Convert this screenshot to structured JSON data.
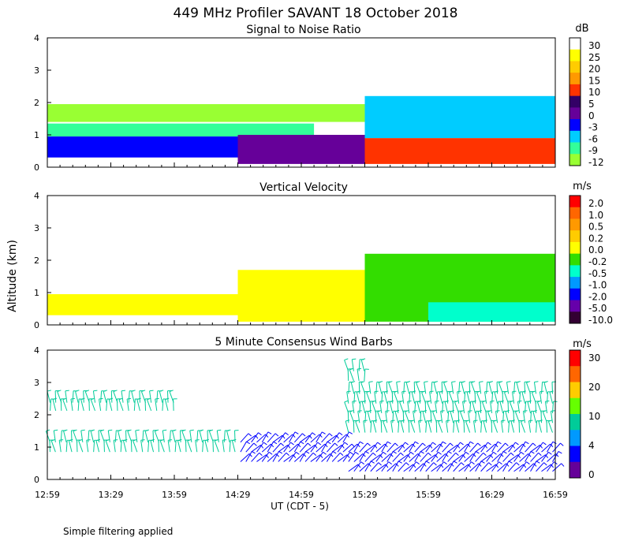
{
  "figure": {
    "title": "449 MHz Profiler SAVANT 18 October 2018",
    "ylabel": "Altitude (km)",
    "xlabel": "UT  (CDT - 5)",
    "footnote": "Simple filtering applied"
  },
  "chart_data": [
    {
      "type": "heatmap",
      "title": "Signal to Noise Ratio",
      "units": "dB",
      "xlim": [
        "12:59",
        "16:59"
      ],
      "ylim": [
        0,
        4
      ],
      "x_ticks": [
        "12:59",
        "13:29",
        "13:59",
        "14:29",
        "14:59",
        "15:29",
        "15:59",
        "16:29",
        "16:59"
      ],
      "y_ticks": [
        "0",
        "1",
        "2",
        "3",
        "4"
      ],
      "colorbar": {
        "labels": [
          "30",
          "25",
          "20",
          "15",
          "10",
          "5",
          "0",
          "-3",
          "-6",
          "-9",
          "-12"
        ],
        "colors": [
          "#ffffff",
          "#ffff00",
          "#ffcc00",
          "#ff9900",
          "#ff3300",
          "#330066",
          "#660099",
          "#0000ff",
          "#00ccff",
          "#33ff99",
          "#99ff33"
        ]
      },
      "layers": [
        {
          "from": "12:59",
          "to": "14:29",
          "alt": [
            0.3,
            0.95
          ],
          "level": "-3"
        },
        {
          "from": "12:59",
          "to": "15:05",
          "alt": [
            0.95,
            1.35
          ],
          "level": "-9"
        },
        {
          "from": "12:59",
          "to": "16:59",
          "alt": [
            1.4,
            1.95
          ],
          "level": "-12"
        },
        {
          "from": "14:29",
          "to": "15:29",
          "alt": [
            0.1,
            1.0
          ],
          "level": "0"
        },
        {
          "from": "15:29",
          "to": "16:59",
          "alt": [
            0.1,
            0.9
          ],
          "level": "10"
        },
        {
          "from": "15:29",
          "to": "16:59",
          "alt": [
            0.9,
            2.2
          ],
          "level": "-6"
        }
      ]
    },
    {
      "type": "heatmap",
      "title": "Vertical Velocity",
      "units": "m/s",
      "xlim": [
        "12:59",
        "16:59"
      ],
      "ylim": [
        0,
        4
      ],
      "x_ticks": [
        "12:59",
        "13:29",
        "13:59",
        "14:29",
        "14:59",
        "15:29",
        "15:59",
        "16:29",
        "16:59"
      ],
      "y_ticks": [
        "0",
        "1",
        "2",
        "3",
        "4"
      ],
      "colorbar": {
        "labels": [
          "2.0",
          "1.0",
          "0.5",
          "0.2",
          "0.0",
          "-0.2",
          "-0.5",
          "-1.0",
          "-2.0",
          "-5.0",
          "-10.0"
        ],
        "colors": [
          "#ff0000",
          "#ff6600",
          "#ff9900",
          "#ffcc00",
          "#ffff00",
          "#33dd00",
          "#00ffcc",
          "#0099ff",
          "#0000ff",
          "#6600aa",
          "#330033"
        ]
      },
      "layers": [
        {
          "from": "12:59",
          "to": "14:29",
          "alt": [
            0.3,
            0.95
          ],
          "level": "0.0"
        },
        {
          "from": "14:29",
          "to": "15:29",
          "alt": [
            0.1,
            1.7
          ],
          "level": "0.0"
        },
        {
          "from": "15:29",
          "to": "16:59",
          "alt": [
            0.1,
            2.2
          ],
          "level": "-0.2"
        },
        {
          "from": "15:59",
          "to": "16:59",
          "alt": [
            0.1,
            0.7
          ],
          "level": "-0.5"
        }
      ]
    },
    {
      "type": "wind_barbs",
      "title": "5 Minute Consensus Wind Barbs",
      "units": "m/s",
      "xlim": [
        "12:59",
        "16:59"
      ],
      "ylim": [
        0,
        4
      ],
      "x_ticks": [
        "12:59",
        "13:29",
        "13:59",
        "14:29",
        "14:59",
        "15:29",
        "15:59",
        "16:29",
        "16:59"
      ],
      "y_ticks": [
        "0",
        "1",
        "2",
        "3",
        "4"
      ],
      "colorbar": {
        "labels": [
          "30",
          "20",
          "10",
          "4",
          "0"
        ],
        "colors": [
          "#ff0000",
          "#ff6600",
          "#ffcc00",
          "#66ff00",
          "#00cc99",
          "#0099ff",
          "#0000ff",
          "#660099"
        ]
      },
      "barb_groups": [
        {
          "from": "12:59",
          "to": "14:29",
          "alt": [
            0.7,
            1.3
          ],
          "speed_mps": 8
        },
        {
          "from": "12:59",
          "to": "14:00",
          "alt": [
            2.0,
            2.5
          ],
          "speed_mps": 10
        },
        {
          "from": "14:29",
          "to": "15:20",
          "alt": [
            0.4,
            1.3
          ],
          "speed_mps": 3
        },
        {
          "from": "15:20",
          "to": "16:59",
          "alt": [
            0.1,
            1.0
          ],
          "speed_mps": 3
        },
        {
          "from": "15:20",
          "to": "16:59",
          "alt": [
            1.3,
            2.8
          ],
          "speed_mps": 9
        },
        {
          "from": "15:20",
          "to": "15:30",
          "alt": [
            2.9,
            3.5
          ],
          "speed_mps": 9
        }
      ]
    }
  ]
}
